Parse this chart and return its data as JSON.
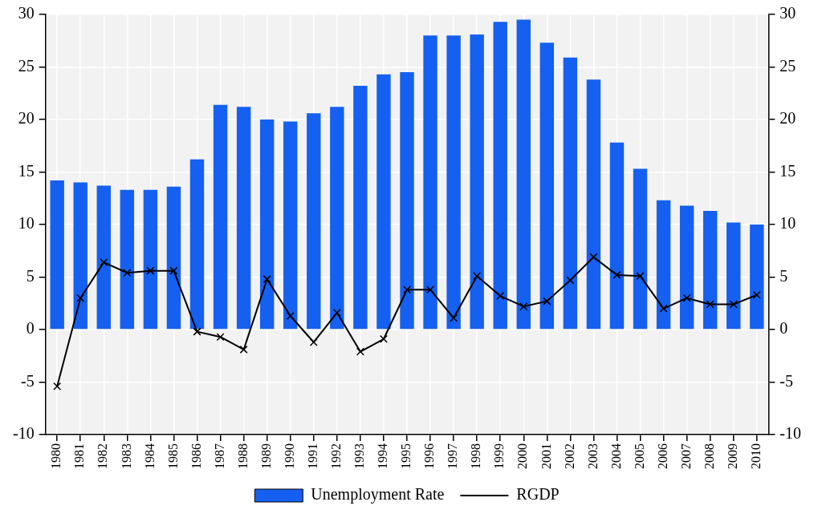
{
  "chart_data": {
    "type": "bar",
    "categories": [
      "1980",
      "1981",
      "1982",
      "1983",
      "1984",
      "1985",
      "1986",
      "1987",
      "1988",
      "1989",
      "1990",
      "1991",
      "1992",
      "1993",
      "1994",
      "1995",
      "1996",
      "1997",
      "1998",
      "1999",
      "2000",
      "2001",
      "2002",
      "2003",
      "2004",
      "2005",
      "2006",
      "2007",
      "2008",
      "2009",
      "2010"
    ],
    "series": [
      {
        "name": "Unemployment Rate",
        "color": "#1560f0",
        "values": [
          14.2,
          14.0,
          13.7,
          13.3,
          13.3,
          13.6,
          16.2,
          21.4,
          21.2,
          20.0,
          19.8,
          20.6,
          21.2,
          23.2,
          24.3,
          24.5,
          28.0,
          28.0,
          28.1,
          29.3,
          29.5,
          27.3,
          25.9,
          23.8,
          17.8,
          15.3,
          12.3,
          11.8,
          11.3,
          10.2,
          10.0
        ]
      },
      {
        "name": "RGDP",
        "type": "line",
        "color": "#000000",
        "marker": "cross",
        "values": [
          -5.4,
          3.0,
          6.4,
          5.4,
          5.6,
          5.6,
          -0.2,
          -0.7,
          -1.9,
          4.8,
          1.3,
          -1.2,
          1.6,
          -2.1,
          -0.9,
          3.8,
          3.8,
          1.1,
          5.1,
          3.2,
          2.2,
          2.7,
          4.7,
          6.9,
          5.2,
          5.1,
          2.0,
          3.0,
          2.4,
          2.4,
          3.3
        ]
      }
    ],
    "ylim": [
      -10,
      30
    ],
    "yticks": [
      -10,
      -5,
      0,
      5,
      10,
      15,
      20,
      25,
      30
    ],
    "y2lim": [
      -10,
      30
    ],
    "y2ticks": [
      -10,
      -5,
      0,
      5,
      10,
      15,
      20,
      25,
      30
    ],
    "grid": true,
    "legend": "bottom"
  }
}
